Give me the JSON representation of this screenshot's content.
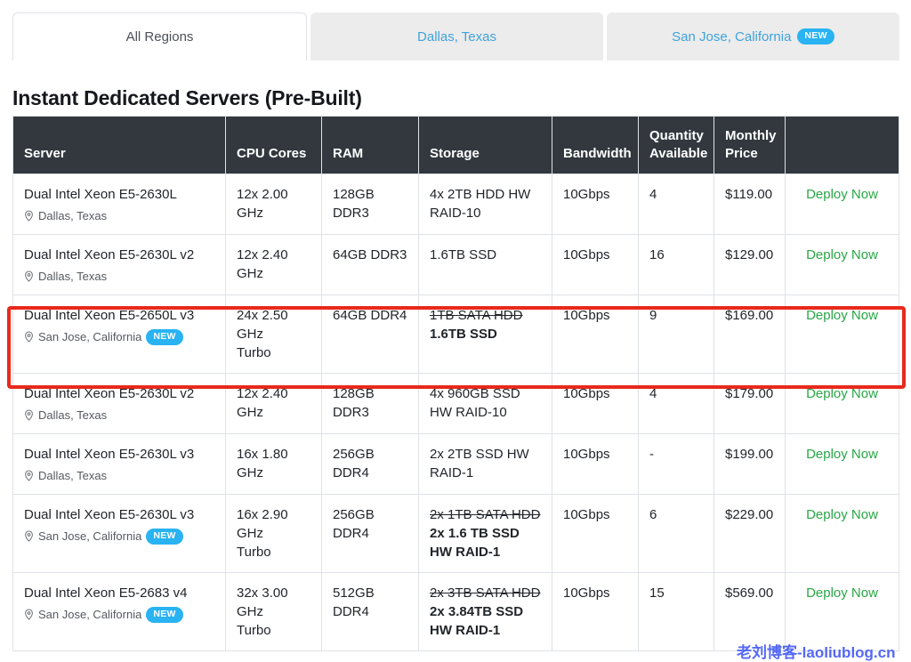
{
  "tabs": [
    {
      "label": "All Regions",
      "active": true
    },
    {
      "label": "Dallas, Texas",
      "active": false
    },
    {
      "label": "San Jose, California",
      "badge": "NEW",
      "active": false
    }
  ],
  "page_title": "Instant Dedicated Servers (Pre-Built)",
  "table": {
    "headers": [
      "Server",
      "CPU Cores",
      "RAM",
      "Storage",
      "Bandwidth",
      "Quantity Available",
      "Monthly Price",
      ""
    ],
    "deploy_label": "Deploy Now",
    "rows": [
      {
        "server": "Dual Intel Xeon E5-2630L",
        "location": "Dallas, Texas",
        "badge": "",
        "cpu": "12x 2.00 GHz",
        "cpu2": "",
        "ram": "128GB DDR3",
        "storage_strike": "",
        "storage_new": "",
        "storage": "4x 2TB HDD HW RAID-10",
        "bandwidth": "10Gbps",
        "quantity": "4",
        "price": "$119.00",
        "highlighted": false
      },
      {
        "server": "Dual Intel Xeon E5-2630L v2",
        "location": "Dallas, Texas",
        "badge": "",
        "cpu": "12x 2.40 GHz",
        "cpu2": "",
        "ram": "64GB DDR3",
        "storage_strike": "",
        "storage_new": "",
        "storage": "1.6TB SSD",
        "bandwidth": "10Gbps",
        "quantity": "16",
        "price": "$129.00",
        "highlighted": false
      },
      {
        "server": "Dual Intel Xeon E5-2650L v3",
        "location": "San Jose, California",
        "badge": "NEW",
        "cpu": "24x 2.50 GHz",
        "cpu2": "Turbo",
        "ram": "64GB DDR4",
        "storage_strike": "1TB SATA HDD",
        "storage_new": "1.6TB SSD",
        "storage": "",
        "bandwidth": "10Gbps",
        "quantity": "9",
        "price": "$169.00",
        "highlighted": true
      },
      {
        "server": "Dual Intel Xeon E5-2630L v2",
        "location": "Dallas, Texas",
        "badge": "",
        "cpu": "12x 2.40 GHz",
        "cpu2": "",
        "ram": "128GB DDR3",
        "storage_strike": "",
        "storage_new": "",
        "storage": "4x 960GB SSD HW RAID-10",
        "bandwidth": "10Gbps",
        "quantity": "4",
        "price": "$179.00",
        "highlighted": false
      },
      {
        "server": "Dual Intel Xeon E5-2630L v3",
        "location": "Dallas, Texas",
        "badge": "",
        "cpu": "16x 1.80 GHz",
        "cpu2": "",
        "ram": "256GB DDR4",
        "storage_strike": "",
        "storage_new": "",
        "storage": "2x 2TB SSD HW RAID-1",
        "bandwidth": "10Gbps",
        "quantity": "-",
        "price": "$199.00",
        "highlighted": false
      },
      {
        "server": "Dual Intel Xeon E5-2630L v3",
        "location": "San Jose, California",
        "badge": "NEW",
        "cpu": "16x 2.90 GHz",
        "cpu2": "Turbo",
        "ram": "256GB DDR4",
        "storage_strike": "2x 1TB SATA HDD",
        "storage_new": "2x 1.6 TB SSD HW RAID-1",
        "storage": "",
        "bandwidth": "10Gbps",
        "quantity": "6",
        "price": "$229.00",
        "highlighted": false
      },
      {
        "server": "Dual Intel Xeon E5-2683 v4",
        "location": "San Jose, California",
        "badge": "NEW",
        "cpu": "32x 3.00 GHz",
        "cpu2": "Turbo",
        "ram": "512GB DDR4",
        "storage_strike": "2x 3TB SATA HDD",
        "storage_new": "2x 3.84TB SSD HW RAID-1",
        "storage": "",
        "bandwidth": "10Gbps",
        "quantity": "15",
        "price": "$569.00",
        "highlighted": false
      }
    ]
  },
  "watermark": {
    "text": "老刘博客-laoliublog.cn"
  },
  "icons": {
    "location": "map-pin-outline"
  },
  "colors": {
    "tab_link_blue": "#3fa2dc",
    "new_badge_cyan": "#29b3f2",
    "deploy_green": "#28a745",
    "header_dark": "#32383e",
    "highlight_red": "#e8291c",
    "watermark_blue": "#5468f5"
  }
}
